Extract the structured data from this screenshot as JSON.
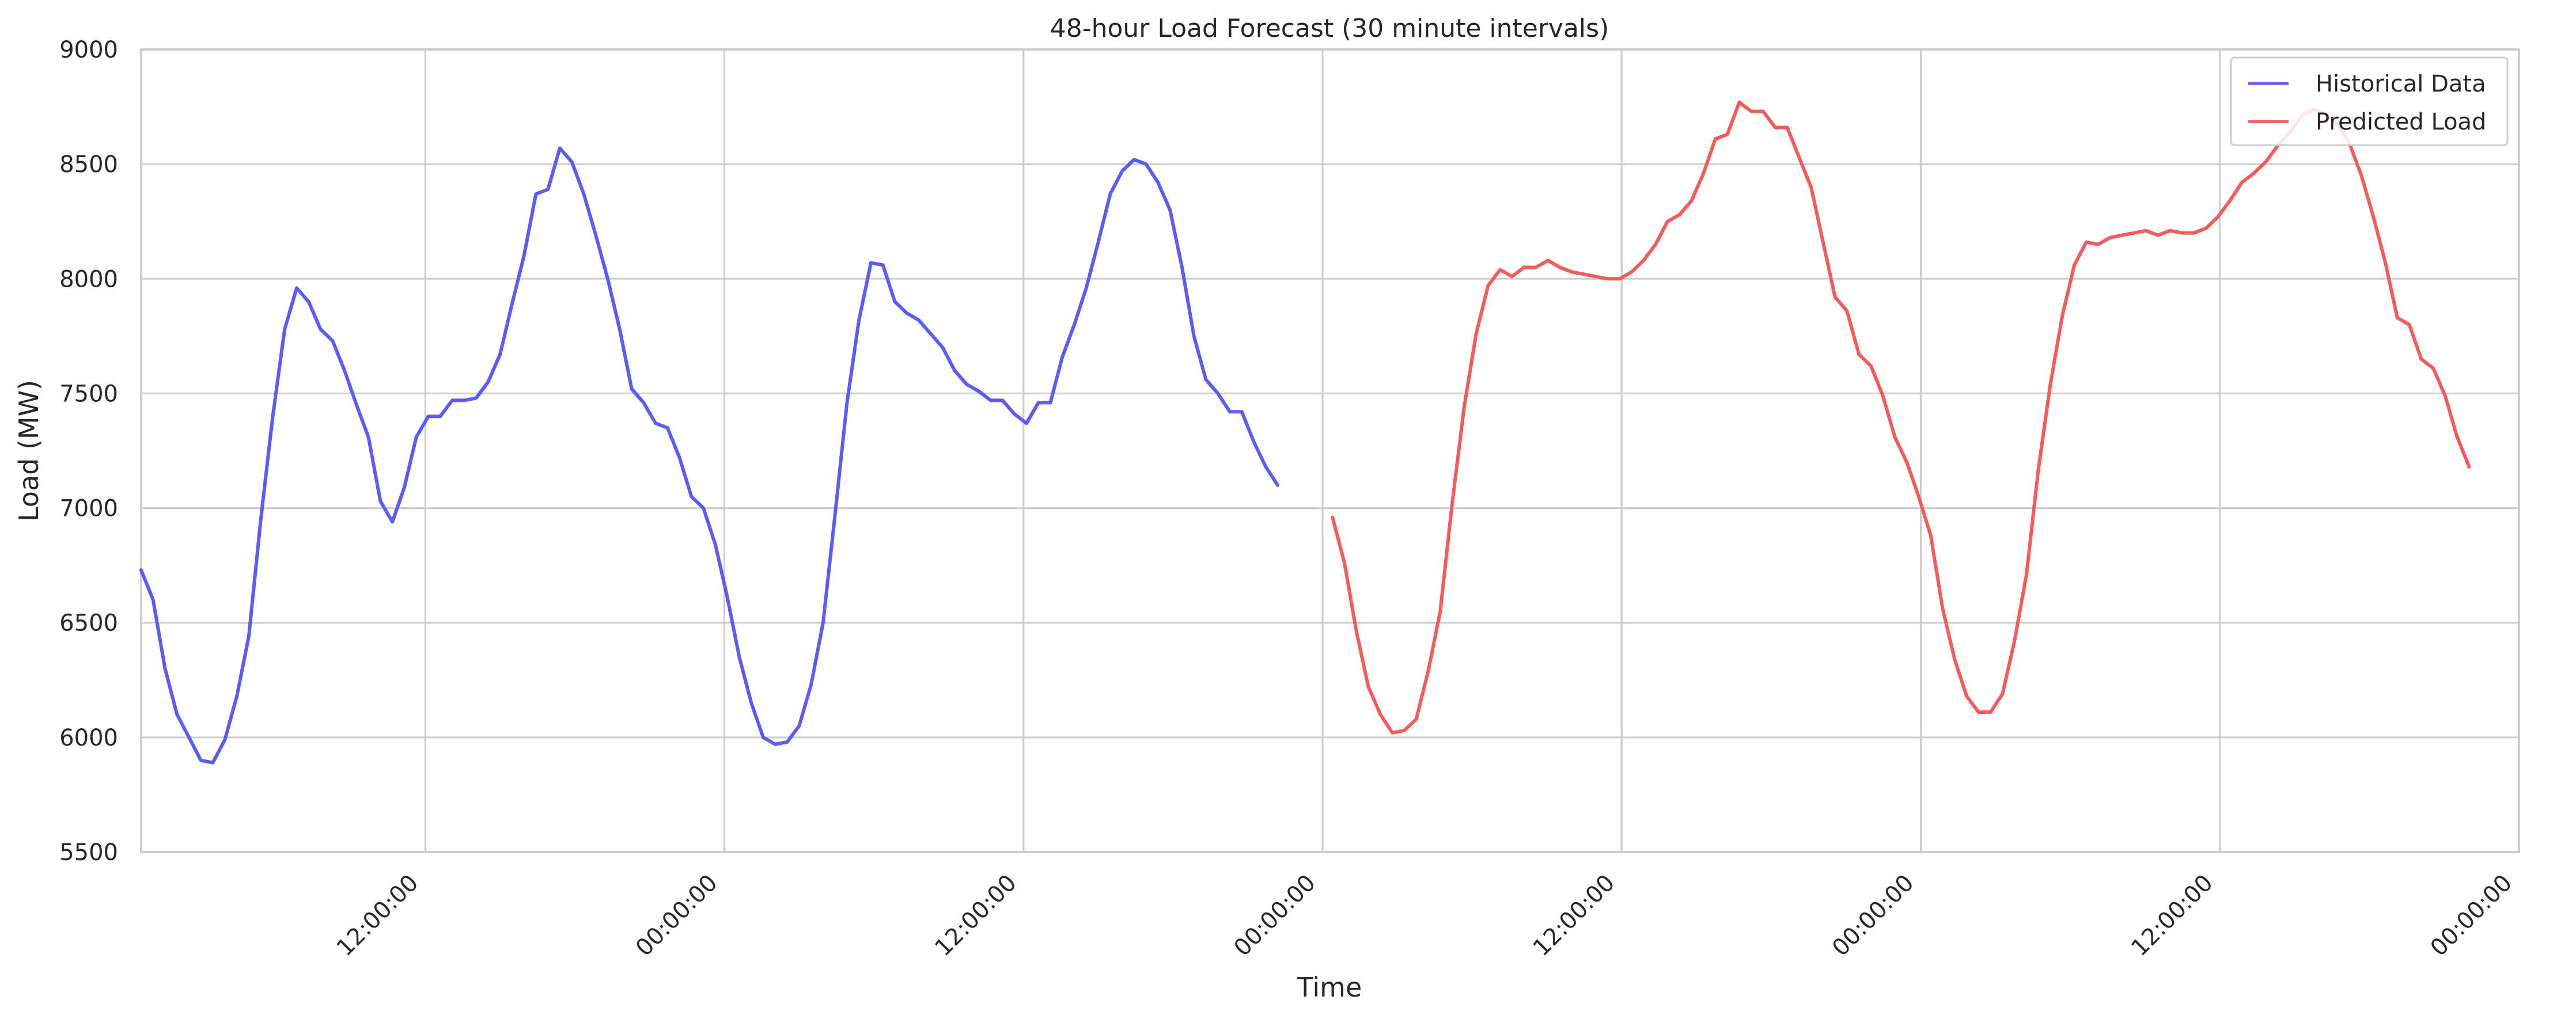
{
  "chart_data": {
    "type": "line",
    "title": "48-hour Load Forecast (30 minute intervals)",
    "xlabel": "Time",
    "ylabel": "Load (MW)",
    "ylim": [
      5500,
      9000
    ],
    "xlim_hours": [
      0,
      238.5
    ],
    "yticks": [
      5500,
      6000,
      6500,
      7000,
      7500,
      8000,
      8500,
      9000
    ],
    "xticks": [
      {
        "hour": 28.5,
        "label": "12:00:00"
      },
      {
        "hour": 58.5,
        "label": "00:00:00"
      },
      {
        "hour": 88.5,
        "label": "12:00:00"
      },
      {
        "hour": 118.5,
        "label": "00:00:00"
      },
      {
        "hour": 148.5,
        "label": "12:00:00"
      },
      {
        "hour": 178.5,
        "label": "00:00:00"
      },
      {
        "hour": 208.5,
        "label": "12:00:00"
      },
      {
        "hour": 238.5,
        "label": "00:00:00"
      }
    ],
    "grid": true,
    "legend_position": "top-right",
    "series": [
      {
        "name": "Historical Data",
        "color": "#5b5bf5",
        "x_start_hour": 0,
        "x_step_hours": 1.2,
        "values": [
          6730,
          6600,
          6300,
          6100,
          6000,
          5900,
          5890,
          5990,
          6180,
          6440,
          6950,
          7400,
          7780,
          7960,
          7900,
          7780,
          7730,
          7600,
          7450,
          7310,
          7030,
          6940,
          7090,
          7310,
          7400,
          7400,
          7470,
          7470,
          7480,
          7550,
          7670,
          7890,
          8100,
          8370,
          8390,
          8570,
          8510,
          8370,
          8190,
          8000,
          7780,
          7520,
          7460,
          7370,
          7350,
          7220,
          7050,
          7000,
          6840,
          6610,
          6350,
          6150,
          6000,
          5970,
          5980,
          6050,
          6230,
          6500,
          6970,
          7460,
          7820,
          8070,
          8060,
          7900,
          7850,
          7820,
          7760,
          7700,
          7600,
          7540,
          7510,
          7470,
          7470,
          7410,
          7370,
          7460,
          7460,
          7660,
          7800,
          7960,
          8160,
          8370,
          8470,
          8520,
          8500,
          8420,
          8300,
          8050,
          7750,
          7560,
          7500,
          7420,
          7420,
          7290,
          7180,
          7100
        ]
      },
      {
        "name": "Predicted Load",
        "color": "#f55b5b",
        "x_start_hour": 119.5,
        "x_step_hours": 1.2,
        "values": [
          6960,
          6760,
          6460,
          6220,
          6100,
          6020,
          6030,
          6080,
          6290,
          6550,
          7020,
          7440,
          7760,
          7970,
          8040,
          8010,
          8050,
          8050,
          8080,
          8050,
          8030,
          8020,
          8010,
          8000,
          8000,
          8030,
          8080,
          8150,
          8250,
          8280,
          8340,
          8460,
          8610,
          8630,
          8770,
          8730,
          8730,
          8660,
          8660,
          8530,
          8400,
          8160,
          7920,
          7860,
          7670,
          7620,
          7490,
          7310,
          7200,
          7050,
          6880,
          6560,
          6340,
          6180,
          6110,
          6110,
          6190,
          6420,
          6710,
          7170,
          7540,
          7840,
          8060,
          8160,
          8150,
          8180,
          8190,
          8200,
          8210,
          8190,
          8210,
          8200,
          8200,
          8220,
          8270,
          8340,
          8420,
          8460,
          8510,
          8580,
          8640,
          8710,
          8740,
          8720,
          8670,
          8590,
          8450,
          8270,
          8070,
          7830,
          7800,
          7650,
          7610,
          7490,
          7310,
          7180
        ]
      }
    ]
  }
}
